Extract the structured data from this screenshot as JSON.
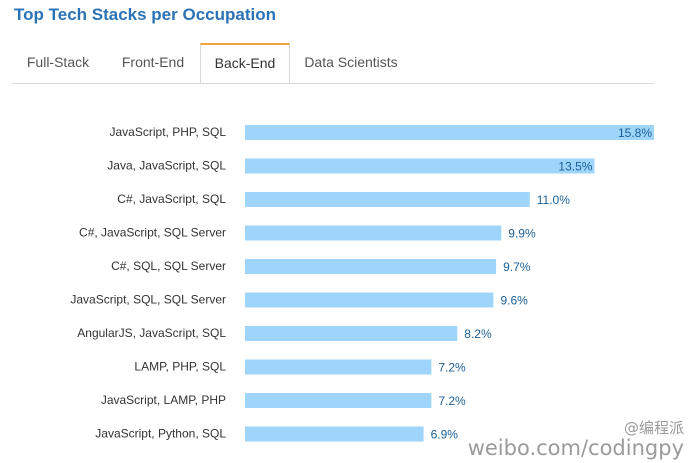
{
  "title": "Top Tech Stacks per Occupation",
  "tabs": [
    {
      "label": "Full-Stack",
      "active": false
    },
    {
      "label": "Front-End",
      "active": false
    },
    {
      "label": "Back-End",
      "active": true
    },
    {
      "label": "Data Scientists",
      "active": false
    }
  ],
  "colors": {
    "title": "#2a73b6",
    "bar": "#9fd5fb",
    "value_label": "#1b5f96",
    "category_label": "#333333",
    "active_tab_accent": "#f0a23b"
  },
  "chart_data": {
    "type": "bar",
    "orientation": "horizontal",
    "categories": [
      "JavaScript, PHP, SQL",
      "Java, JavaScript, SQL",
      "C#, JavaScript, SQL",
      "C#, JavaScript, SQL Server",
      "C#, SQL, SQL Server",
      "JavaScript, SQL, SQL Server",
      "AngularJS, JavaScript, SQL",
      "LAMP, PHP, SQL",
      "JavaScript, LAMP, PHP",
      "JavaScript, Python, SQL"
    ],
    "values": [
      15.8,
      13.5,
      11.0,
      9.9,
      9.7,
      9.6,
      8.2,
      7.2,
      7.2,
      6.9
    ],
    "value_labels": [
      "15.8%",
      "13.5%",
      "11.0%",
      "9.9%",
      "9.7%",
      "9.6%",
      "8.2%",
      "7.2%",
      "7.2%",
      "6.9%"
    ],
    "xlim": [
      0,
      15.8
    ],
    "grid": false,
    "legend": "none"
  },
  "watermark": {
    "line1": "@编程派",
    "line2": "weibo.com/codingpy"
  }
}
